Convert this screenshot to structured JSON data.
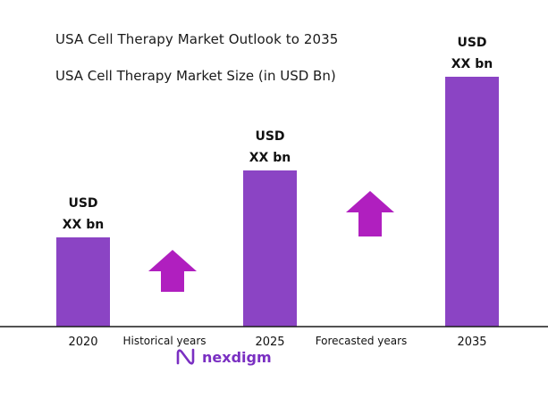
{
  "header": {
    "title": "USA Cell Therapy Market Outlook to 2035",
    "subtitle": "USA Cell Therapy Market Size (in USD Bn)"
  },
  "chart_data": {
    "type": "bar",
    "categories": [
      "2020",
      "2025",
      "2035"
    ],
    "values": [
      1,
      1.75,
      2.8
    ],
    "value_labels": [
      [
        "USD",
        "XX bn"
      ],
      [
        "USD",
        "XX bn"
      ],
      [
        "USD",
        "XX bn"
      ]
    ],
    "period_labels": [
      "Historical years",
      "Forecasted years"
    ],
    "bar_color": "#8b44c4",
    "arrow_color": "#b01fbf",
    "grid": false
  },
  "logo": {
    "text": "nexdigm",
    "color": "#7a2fc2"
  }
}
